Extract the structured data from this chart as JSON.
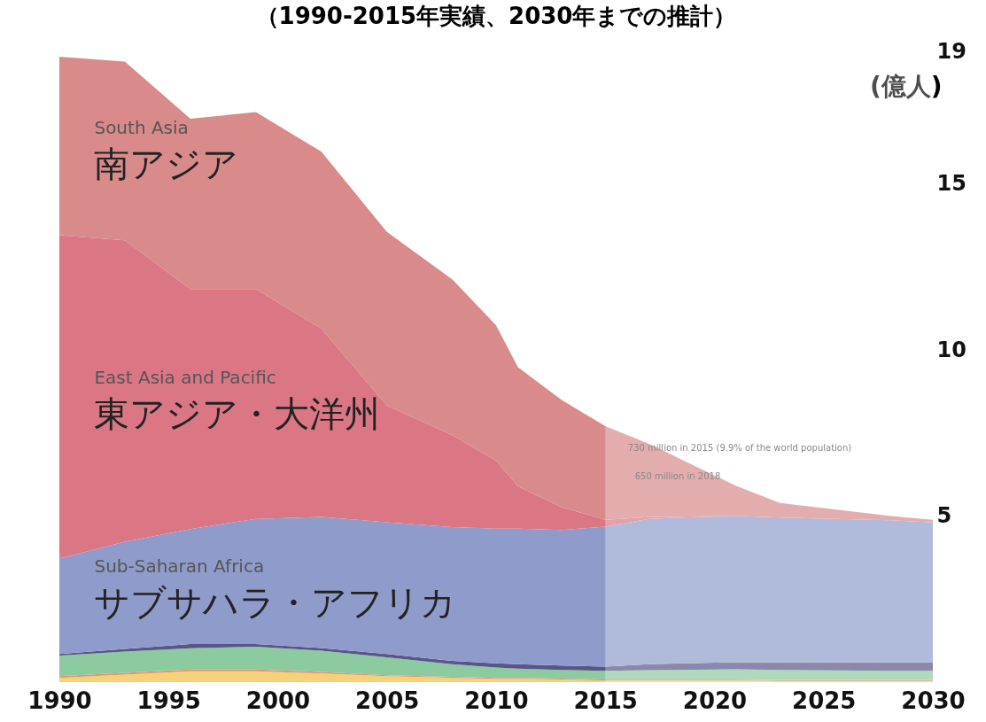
{
  "chart_data": {
    "type": "area",
    "stacked": true,
    "title": "（1990-2015年実績、2030年までの推計）",
    "ylabel": "(億人)",
    "x": [
      1990,
      1993,
      1996,
      1999,
      2002,
      2005,
      2008,
      2010,
      2011,
      2013,
      2015,
      2017,
      2021,
      2023,
      2028,
      2030
    ],
    "xlim": [
      1990,
      2030
    ],
    "xticks": [
      1990,
      1995,
      2000,
      2005,
      2010,
      2015,
      2020,
      2025,
      2030
    ],
    "ylim": [
      0,
      19
    ],
    "yticks": [
      5,
      10,
      15,
      19
    ],
    "grid": false,
    "legend": false,
    "series": [
      {
        "color": "#f5d27a",
        "values": [
          0.13,
          0.23,
          0.33,
          0.33,
          0.26,
          0.18,
          0.13,
          0.1,
          0.1,
          0.08,
          0.05,
          0.05,
          0.05,
          0.03,
          0.03,
          0.03
        ]
      },
      {
        "color": "#e8936a",
        "values": [
          0.05,
          0.05,
          0.05,
          0.05,
          0.05,
          0.03,
          0.03,
          0.03,
          0.03,
          0.03,
          0.03,
          0.03,
          0.03,
          0.03,
          0.03,
          0.03
        ]
      },
      {
        "color": "#8ccaa0",
        "values": [
          0.62,
          0.64,
          0.64,
          0.69,
          0.64,
          0.54,
          0.38,
          0.31,
          0.28,
          0.26,
          0.26,
          0.28,
          0.31,
          0.31,
          0.28,
          0.28
        ]
      },
      {
        "color": "#5a5589",
        "values": [
          0.05,
          0.08,
          0.13,
          0.08,
          0.08,
          0.1,
          0.1,
          0.13,
          0.13,
          0.13,
          0.13,
          0.18,
          0.21,
          0.23,
          0.26,
          0.26
        ]
      },
      {
        "name": "サブサハラ・アフリカ",
        "color": "#8f9ccb",
        "values": [
          2.87,
          3.23,
          3.46,
          3.77,
          3.95,
          3.97,
          4.03,
          4.05,
          4.08,
          4.08,
          4.21,
          4.38,
          4.41,
          4.36,
          4.28,
          4.21
        ]
      },
      {
        "name": "東アジア・大洋州",
        "color": "#db7785",
        "values": [
          9.74,
          9.08,
          7.23,
          6.92,
          5.67,
          3.51,
          2.77,
          2.05,
          1.28,
          0.69,
          0.21,
          0.05,
          0,
          0,
          0,
          0
        ]
      },
      {
        "name": "南アジア",
        "color": "#d98a8a",
        "values": [
          5.38,
          5.38,
          5.13,
          5.33,
          5.33,
          5.23,
          4.69,
          4.08,
          3.59,
          3.23,
          2.82,
          2.21,
          0.9,
          0.44,
          0.13,
          0.08
        ]
      }
    ],
    "bands": [
      {
        "axis": "x",
        "from": 2015,
        "to": 2030,
        "color": "#ffffff"
      }
    ],
    "annotations": [
      "South Asia",
      "East Asia and Pacific",
      "Sub-Saharan Africa",
      "730 million in 2015 (9.9% of the world population)",
      "650 million in 2018"
    ]
  }
}
